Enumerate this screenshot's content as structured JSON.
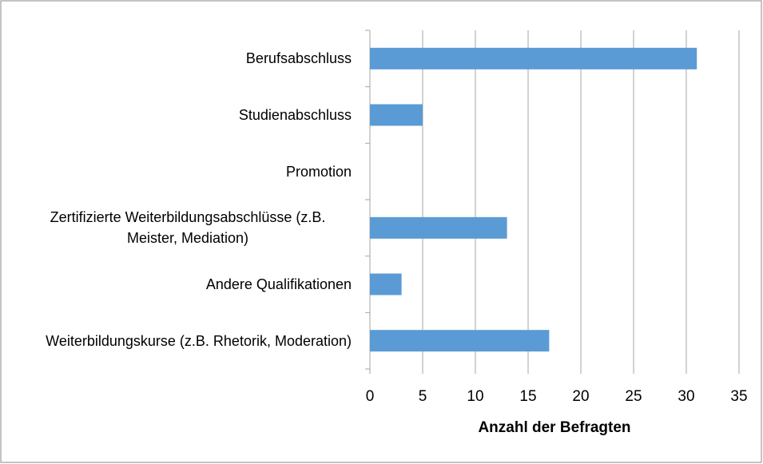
{
  "chart_data": {
    "type": "barh",
    "categories": [
      "Berufsabschluss",
      "Studienabschluss",
      "Promotion",
      "Zertifizierte Weiterbildungsabschlüsse (z.B. Meister, Mediation)",
      "Andere Qualifikationen",
      "Weiterbildungskurse (z.B. Rhetorik, Moderation)"
    ],
    "values": [
      31,
      5,
      0,
      13,
      3,
      17
    ],
    "color": "#5b9bd5",
    "xlabel": "Anzahl der Befragten",
    "xlim": [
      0,
      35
    ],
    "xticks": [
      0,
      5,
      10,
      15,
      20,
      25,
      30,
      35
    ],
    "grid": true
  }
}
